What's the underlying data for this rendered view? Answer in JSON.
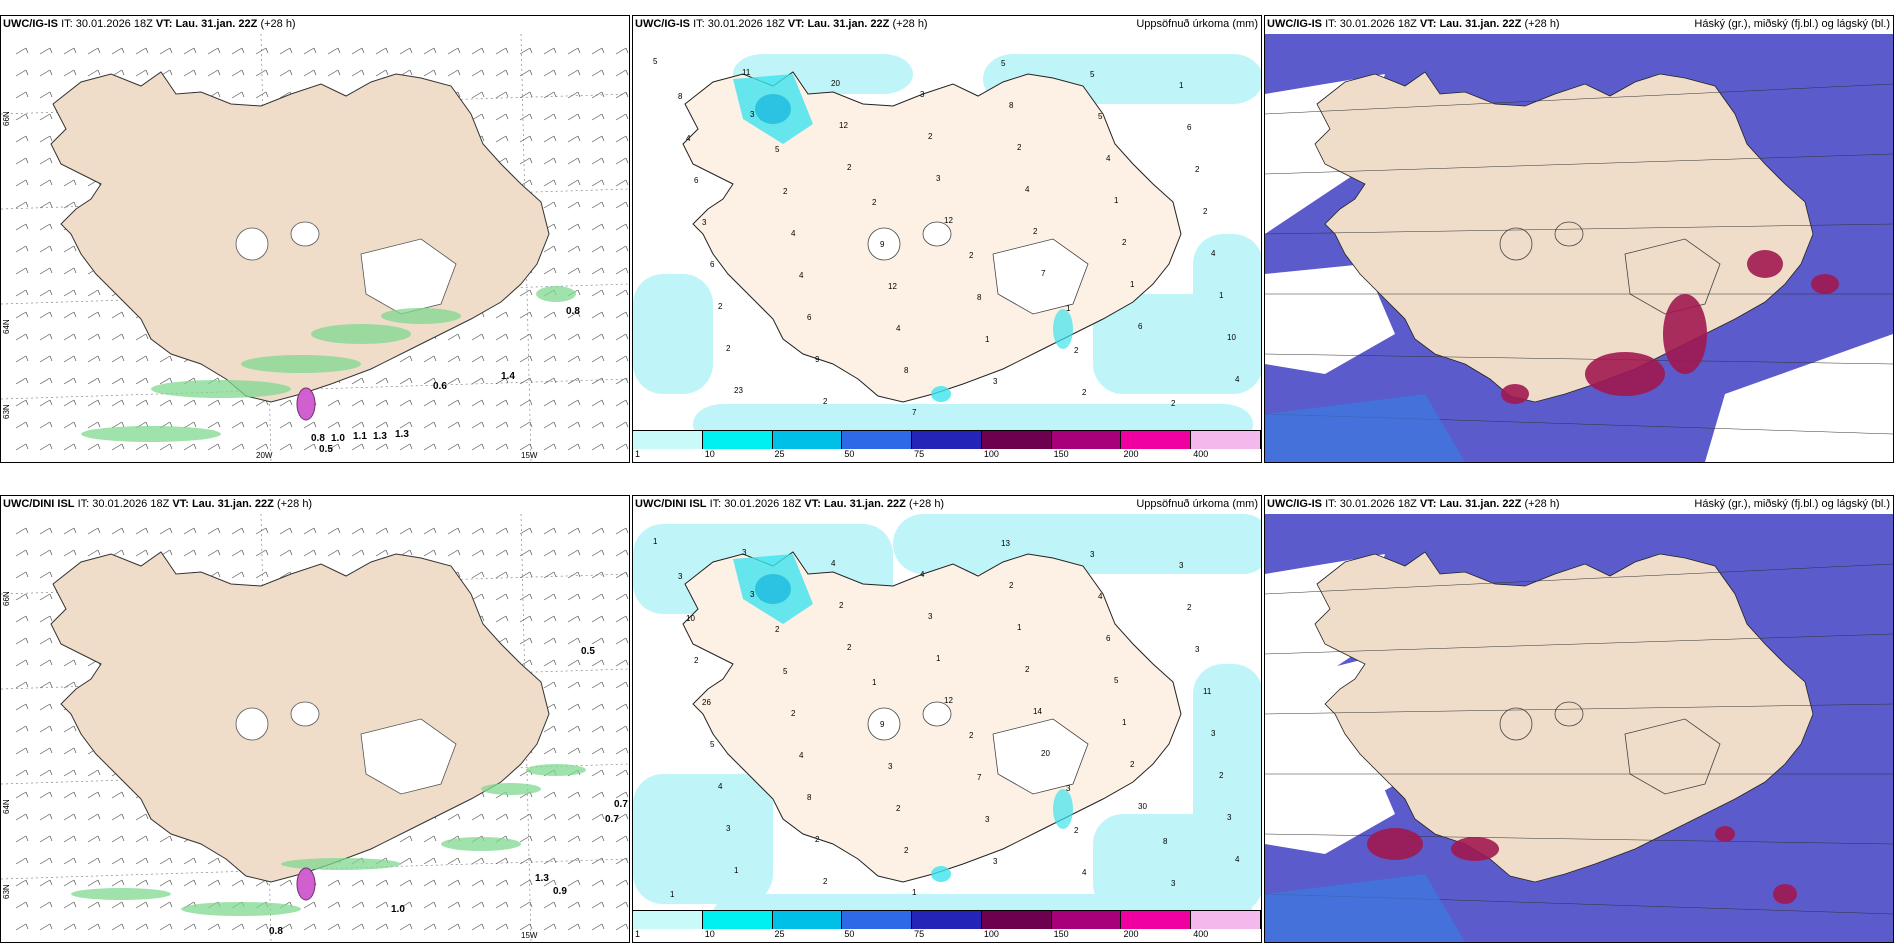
{
  "legend": {
    "labels": [
      "1",
      "10",
      "25",
      "50",
      "75",
      "100",
      "150",
      "200",
      "400"
    ],
    "colors": [
      "#c8fafa",
      "#00f0f0",
      "#00c0e8",
      "#2e6ae8",
      "#2424b8",
      "#6e0050",
      "#a8007a",
      "#f000a0",
      "#f4b8ec"
    ]
  },
  "colors": {
    "land": "#efdcc9",
    "land_precip": "#fcf1e4",
    "sea_low": "#bff5f8",
    "sea_mid": "#3fe3ee",
    "sea_high": "#14b4de",
    "cloud_high": "#5b5bcc",
    "cloud_mid": "#3a7ae0",
    "cloud_low": "#a01850",
    "green": "#7fd88f",
    "pink": "#d060d0"
  },
  "rows": [
    {
      "model": "UWC/IG-IS",
      "it_label": "IT:",
      "it_value": "30.01.2026 18Z",
      "vt_label": "VT:",
      "vt_value": "Lau. 31.jan. 22Z",
      "lead": "(+28 h)",
      "precip_title": "Uppsöfnuð úrkoma (mm)",
      "cloud_model": "UWC/IG-IS",
      "cloud_title": "Háský (gr.), miðský (fj.bl.) og lágský (bl.)",
      "wind_labels": [
        "0.8",
        "0.6",
        "1.4",
        "0.8",
        "1.0",
        "1.1",
        "1.3",
        "1.3",
        "0.5"
      ],
      "lat_labels": [
        "66N",
        "64N",
        "63N"
      ],
      "lon_labels": [
        "20W",
        "15W"
      ],
      "precip_numbers": [
        "5",
        "3",
        "2",
        "12",
        "7",
        "6",
        "4",
        "11",
        "12",
        "3",
        "2",
        "1",
        "10",
        "23",
        "20",
        "2",
        "4",
        "2",
        "1",
        "2",
        "2",
        "3",
        "2",
        "1",
        "4",
        "2",
        "9",
        "7",
        "8",
        "4",
        "2",
        "6",
        "6",
        "8",
        "5",
        "5",
        "2",
        "3",
        "4",
        "4",
        "3",
        "5",
        "6",
        "6",
        "4",
        "12",
        "1",
        "2",
        "1",
        "4",
        "2",
        "9",
        "8",
        "2",
        "2",
        "8",
        "5",
        "2",
        "2",
        "1"
      ]
    },
    {
      "model": "UWC/DINI ISL",
      "it_label": "IT:",
      "it_value": "30.01.2026 18Z",
      "vt_label": "VT:",
      "vt_value": "Lau. 31.jan. 22Z",
      "lead": "(+28 h)",
      "precip_title": "Uppsöfnuð úrkoma (mm)",
      "cloud_model": "UWC/IG-IS",
      "cloud_title": "Háský (gr.), miðský (fj.bl.) og lágský (bl.)",
      "wind_labels": [
        "0.7",
        "0.7",
        "0.5",
        "1.3",
        "0.9",
        "1.0",
        "0.8"
      ],
      "lat_labels": [
        "66N",
        "64N",
        "63N"
      ],
      "lon_labels": [
        "15W"
      ],
      "precip_numbers": [
        "1",
        "3",
        "2",
        "12",
        "20",
        "30",
        "4",
        "3",
        "2",
        "1",
        "14",
        "2",
        "3",
        "1",
        "4",
        "3",
        "2",
        "1",
        "2",
        "3",
        "2",
        "4",
        "1",
        "5",
        "3",
        "4",
        "2",
        "1",
        "2",
        "6",
        "11",
        "5",
        "8",
        "2",
        "13",
        "4",
        "3",
        "26",
        "4",
        "2",
        "3",
        "3",
        "2",
        "2",
        "2",
        "3",
        "3",
        "4",
        "3",
        "10",
        "5",
        "9",
        "7",
        "2",
        "3",
        "3",
        "2",
        "1",
        "2",
        "3",
        "8",
        "1"
      ]
    }
  ]
}
